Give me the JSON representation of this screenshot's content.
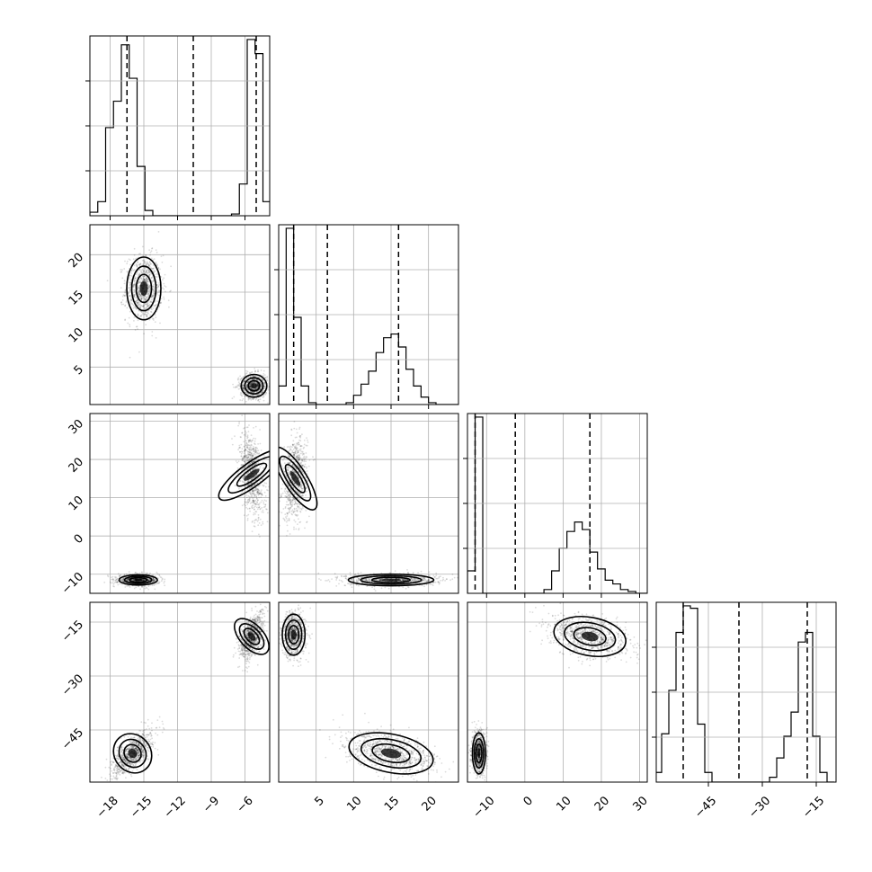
{
  "chart_data": {
    "type": "corner",
    "parameters": [
      {
        "index": 0,
        "range": [
          -19.8,
          -3.8
        ],
        "ticks": [
          -18,
          -15,
          -12,
          -9,
          -6
        ],
        "tick_labels": [
          "−18",
          "−15",
          "−12",
          "−9",
          "−6"
        ],
        "quantiles": [
          -16.5,
          -10.6,
          -5.0
        ]
      },
      {
        "index": 1,
        "range": [
          0,
          24
        ],
        "ticks": [
          5,
          10,
          15,
          20
        ],
        "tick_labels": [
          "5",
          "10",
          "15",
          "20"
        ],
        "quantiles": [
          2.0,
          6.5,
          16.0
        ]
      },
      {
        "index": 2,
        "range": [
          -15,
          32
        ],
        "ticks": [
          -10,
          0,
          10,
          20,
          30
        ],
        "tick_labels": [
          "−10",
          "0",
          "10",
          "20",
          "30"
        ],
        "quantiles": [
          -13.0,
          -2.5,
          17.0
        ]
      },
      {
        "index": 3,
        "range": [
          -59.5,
          -9.5
        ],
        "ticks": [
          -45,
          -30,
          -15
        ],
        "tick_labels": [
          "−45",
          "−30",
          "−15"
        ],
        "quantiles": [
          -52.0,
          -36.5,
          -17.5
        ]
      }
    ],
    "histograms": [
      {
        "param": 0,
        "bins": [
          -19.8,
          -19.1,
          -18.4,
          -17.7,
          -17.0,
          -16.3,
          -15.6,
          -14.9,
          -14.2,
          -13.5,
          -12.8,
          -12.1,
          -11.4,
          -10.7,
          -10.0,
          -9.3,
          -8.6,
          -7.9,
          -7.2,
          -6.5,
          -5.8,
          -5.1,
          -4.4,
          -3.7
        ],
        "counts": [
          2,
          8,
          50,
          65,
          97,
          78,
          28,
          3,
          0,
          0,
          0,
          0,
          0,
          0,
          0,
          0,
          0,
          0,
          1,
          18,
          100,
          92,
          8
        ]
      },
      {
        "param": 1,
        "bins": [
          0,
          1,
          2,
          3,
          4,
          5,
          6,
          7,
          8,
          9,
          10,
          11,
          12,
          13,
          14,
          15,
          16,
          17,
          18,
          19,
          20,
          21,
          22,
          23,
          24
        ],
        "counts": [
          10,
          95,
          47,
          10,
          1,
          0,
          0,
          0,
          0,
          1,
          5,
          11,
          18,
          28,
          36,
          38,
          31,
          19,
          10,
          4,
          1,
          0,
          0,
          0
        ]
      },
      {
        "param": 2,
        "bins": [
          -15,
          -13,
          -11,
          -9,
          -7,
          -5,
          -3,
          -1,
          1,
          3,
          5,
          7,
          9,
          11,
          13,
          15,
          17,
          19,
          21,
          23,
          25,
          27,
          29,
          31,
          33
        ],
        "counts": [
          12,
          94,
          0,
          0,
          0,
          0,
          0,
          0,
          0,
          0,
          2,
          12,
          24,
          33,
          38,
          34,
          22,
          13,
          7,
          5,
          2,
          1,
          0,
          0
        ]
      },
      {
        "param": 3,
        "bins": [
          -60,
          -58,
          -56,
          -54,
          -52,
          -50,
          -48,
          -46,
          -44,
          -42,
          -40,
          -38,
          -36,
          -34,
          -32,
          -30,
          -28,
          -26,
          -24,
          -22,
          -20,
          -18,
          -16,
          -14,
          -12,
          -10
        ],
        "counts": [
          4,
          20,
          38,
          62,
          73,
          72,
          24,
          4,
          0,
          0,
          0,
          0,
          0,
          0,
          0,
          0,
          2,
          10,
          19,
          29,
          58,
          62,
          19,
          4,
          0
        ]
      }
    ],
    "clusters": [
      {
        "x": 0,
        "y": 1,
        "mx": -15.0,
        "my": 15.5,
        "sx": 0.8,
        "sy": 2.2,
        "rho": 0.0
      },
      {
        "x": 0,
        "y": 1,
        "mx": -5.2,
        "my": 2.5,
        "sx": 0.6,
        "sy": 0.8,
        "rho": 0.0
      },
      {
        "x": 0,
        "y": 2,
        "mx": -5.4,
        "my": 16.0,
        "sx": 0.55,
        "sy": 5.5,
        "rho": -0.4
      },
      {
        "x": 0,
        "y": 2,
        "mx": -15.5,
        "my": -11.5,
        "sx": 0.9,
        "sy": 0.7,
        "rho": 0.0
      },
      {
        "x": 1,
        "y": 2,
        "mx": 2.2,
        "my": 15.0,
        "sx": 0.8,
        "sy": 5.0,
        "rho": 0.2
      },
      {
        "x": 1,
        "y": 2,
        "mx": 15.0,
        "my": -11.5,
        "sx": 3.0,
        "sy": 0.8,
        "rho": 0.0
      },
      {
        "x": 0,
        "y": 3,
        "mx": -5.4,
        "my": -19.0,
        "sx": 0.55,
        "sy": 3.2,
        "rho": 0.5
      },
      {
        "x": 0,
        "y": 3,
        "mx": -16.0,
        "my": -51.5,
        "sx": 0.85,
        "sy": 3.0,
        "rho": 0.7
      },
      {
        "x": 1,
        "y": 3,
        "mx": 2.0,
        "my": -18.5,
        "sx": 0.8,
        "sy": 3.0,
        "rho": 0.0
      },
      {
        "x": 1,
        "y": 3,
        "mx": 15.0,
        "my": -51.5,
        "sx": 3.0,
        "sy": 2.8,
        "rho": -0.45
      },
      {
        "x": 2,
        "y": 3,
        "mx": 17.0,
        "my": -19.0,
        "sx": 5.0,
        "sy": 2.8,
        "rho": -0.35
      },
      {
        "x": 2,
        "y": 3,
        "mx": -12.0,
        "my": -51.5,
        "sx": 0.9,
        "sy": 3.0,
        "rho": 0.0
      }
    ],
    "grid": true,
    "title": "",
    "xlabel": "",
    "ylabel": ""
  }
}
